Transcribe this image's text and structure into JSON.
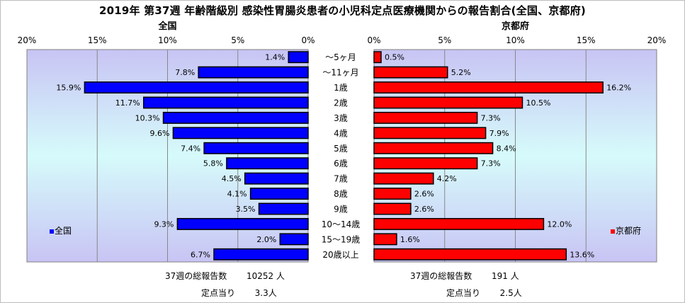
{
  "title": "2019年 第37週 年齢階級別 感染性胃腸炎患者の小児科定点医療機関からの報告割合(全国、京都府)",
  "colors": {
    "national": "#0000ff",
    "kyoto": "#ff0000",
    "bar_edge": "#000000"
  },
  "chart_data": {
    "type": "bar",
    "orientation": "horizontal-butterfly",
    "categories": [
      "〜5ヶ月",
      "〜11ヶ月",
      "1歳",
      "2歳",
      "3歳",
      "4歳",
      "5歳",
      "6歳",
      "7歳",
      "8歳",
      "9歳",
      "10〜14歳",
      "15〜19歳",
      "20歳以上"
    ],
    "series": [
      {
        "name": "全国",
        "values": [
          1.4,
          7.8,
          15.9,
          11.7,
          10.3,
          9.6,
          7.4,
          5.8,
          4.5,
          4.1,
          3.5,
          9.3,
          2.0,
          6.7
        ],
        "labels": [
          "1.4%",
          "7.8%",
          "15.9%",
          "11.7%",
          "10.3%",
          "9.6%",
          "7.4%",
          "5.8%",
          "4.5%",
          "4.1%",
          "3.5%",
          "9.3%",
          "2.0%",
          "6.7%"
        ]
      },
      {
        "name": "京都府",
        "values": [
          0.5,
          5.2,
          16.2,
          10.5,
          7.3,
          7.9,
          8.4,
          7.3,
          4.2,
          2.6,
          2.6,
          12.0,
          1.6,
          13.6
        ],
        "labels": [
          "0.5%",
          "5.2%",
          "16.2%",
          "10.5%",
          "7.3%",
          "7.9%",
          "8.4%",
          "7.3%",
          "4.2%",
          "2.6%",
          "2.6%",
          "12.0%",
          "1.6%",
          "13.6%"
        ]
      }
    ],
    "panels": [
      {
        "heading": "全国",
        "xlim": [
          0,
          20
        ],
        "direction": "reversed",
        "ticks": [
          20,
          15,
          10,
          5,
          0
        ],
        "tick_labels": [
          "20%",
          "15%",
          "10%",
          "5%",
          "0%"
        ],
        "legend": "全国",
        "legend_position": "left"
      },
      {
        "heading": "京都府",
        "xlim": [
          0,
          20
        ],
        "direction": "normal",
        "ticks": [
          0,
          5,
          10,
          15,
          20
        ],
        "tick_labels": [
          "0%",
          "5%",
          "10%",
          "15%",
          "20%"
        ],
        "legend": "京都府",
        "legend_position": "right"
      }
    ],
    "grid": true
  },
  "footer": {
    "national": {
      "total_label": "37週の総報告数",
      "total_value": "10252 人",
      "per_label": "定点当り",
      "per_value": "3.3人"
    },
    "kyoto": {
      "total_label": "37週の総報告数",
      "total_value": "191 人",
      "per_label": "定点当り",
      "per_value": "2.5人"
    }
  }
}
